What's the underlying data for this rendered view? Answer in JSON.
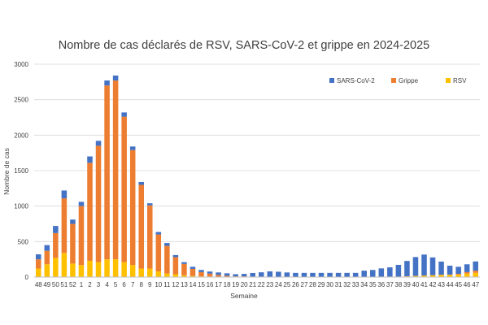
{
  "chart_data": {
    "type": "bar",
    "stacked": true,
    "title": "Nombre de cas déclarés de RSV, SARS-CoV-2 et grippe en 2024-2025",
    "xlabel": "Semaine",
    "ylabel": "Nombre de cas",
    "ylim": [
      0,
      3000
    ],
    "yticks": [
      0,
      500,
      1000,
      1500,
      2000,
      2500,
      3000
    ],
    "grid": true,
    "legend_position": "top-right",
    "categories": [
      "48",
      "49",
      "50",
      "51",
      "52",
      "1",
      "2",
      "3",
      "4",
      "5",
      "6",
      "7",
      "8",
      "9",
      "10",
      "11",
      "12",
      "13",
      "14",
      "15",
      "16",
      "17",
      "18",
      "19",
      "20",
      "21",
      "22",
      "23",
      "24",
      "25",
      "26",
      "27",
      "28",
      "29",
      "30",
      "31",
      "32",
      "33",
      "34",
      "35",
      "36",
      "37",
      "38",
      "39",
      "40",
      "41",
      "42",
      "43",
      "44",
      "45",
      "46",
      "47"
    ],
    "series": [
      {
        "name": "RSV",
        "color": "#FFC000",
        "values": [
          120,
          180,
          270,
          340,
          190,
          170,
          230,
          210,
          250,
          250,
          210,
          170,
          120,
          120,
          80,
          50,
          40,
          25,
          15,
          10,
          8,
          5,
          3,
          2,
          2,
          2,
          2,
          2,
          2,
          2,
          2,
          2,
          2,
          2,
          2,
          2,
          2,
          2,
          3,
          3,
          5,
          5,
          5,
          10,
          15,
          20,
          25,
          30,
          30,
          35,
          50,
          60
        ]
      },
      {
        "name": "Grippe",
        "color": "#ED7D31",
        "values": [
          130,
          190,
          350,
          770,
          560,
          830,
          1380,
          1640,
          2450,
          2520,
          2050,
          1620,
          1180,
          890,
          520,
          390,
          240,
          160,
          100,
          60,
          40,
          25,
          15,
          8,
          8,
          5,
          5,
          3,
          3,
          3,
          2,
          2,
          2,
          2,
          2,
          2,
          2,
          2,
          2,
          2,
          2,
          2,
          2,
          2,
          2,
          2,
          2,
          3,
          5,
          10,
          20,
          30
        ]
      },
      {
        "name": "SARS-CoV-2",
        "color": "#4472C4",
        "values": [
          70,
          80,
          100,
          110,
          60,
          60,
          90,
          70,
          70,
          70,
          60,
          50,
          40,
          30,
          35,
          40,
          30,
          25,
          30,
          30,
          30,
          35,
          35,
          30,
          35,
          50,
          60,
          75,
          70,
          60,
          55,
          55,
          55,
          55,
          55,
          55,
          55,
          55,
          85,
          95,
          115,
          130,
          165,
          215,
          265,
          295,
          250,
          185,
          125,
          100,
          110,
          130
        ]
      }
    ]
  }
}
